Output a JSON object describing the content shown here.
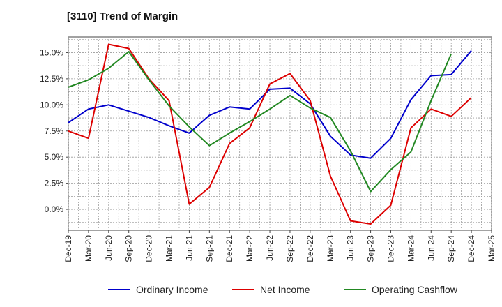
{
  "title": "[3110]  Trend of Margin",
  "chart_data": {
    "type": "line",
    "title": "[3110]  Trend of Margin",
    "xlabel": "",
    "ylabel": "",
    "ylim": [
      -2.0,
      16.5
    ],
    "grid": true,
    "legend_placement": "bottom",
    "categories": [
      "Dec-19",
      "Mar-20",
      "Jun-20",
      "Sep-20",
      "Dec-20",
      "Mar-21",
      "Jun-21",
      "Sep-21",
      "Dec-21",
      "Mar-22",
      "Jun-22",
      "Sep-22",
      "Dec-22",
      "Mar-23",
      "Jun-23",
      "Sep-23",
      "Dec-23",
      "Mar-24",
      "Jun-24",
      "Sep-24",
      "Dec-24",
      "Mar-25"
    ],
    "y_ticks": [
      0.0,
      2.5,
      5.0,
      7.5,
      10.0,
      12.5,
      15.0
    ],
    "y_tick_labels": [
      "0.0%",
      "2.5%",
      "5.0%",
      "7.5%",
      "10.0%",
      "12.5%",
      "15.0%"
    ],
    "series": [
      {
        "name": "Ordinary Income",
        "color": "#0000cc",
        "values": [
          8.3,
          9.6,
          10.0,
          9.4,
          8.8,
          8.0,
          7.3,
          9.0,
          9.8,
          9.6,
          11.5,
          11.6,
          10.1,
          7.0,
          5.2,
          4.9,
          6.8,
          10.5,
          12.8,
          12.9,
          15.2,
          null
        ]
      },
      {
        "name": "Net Income",
        "color": "#dd0000",
        "values": [
          7.5,
          6.8,
          15.8,
          15.4,
          12.5,
          10.4,
          0.5,
          2.1,
          6.3,
          7.8,
          12.0,
          13.0,
          10.4,
          3.2,
          -1.1,
          -1.4,
          0.4,
          7.8,
          9.6,
          8.9,
          10.7,
          null
        ]
      },
      {
        "name": "Operating Cashflow",
        "color": "#228822",
        "values": [
          11.7,
          12.4,
          13.5,
          15.1,
          12.4,
          9.9,
          7.9,
          6.1,
          7.3,
          8.4,
          9.6,
          10.9,
          9.7,
          8.8,
          5.6,
          1.7,
          3.8,
          5.5,
          10.4,
          14.9,
          null,
          null
        ]
      }
    ]
  }
}
